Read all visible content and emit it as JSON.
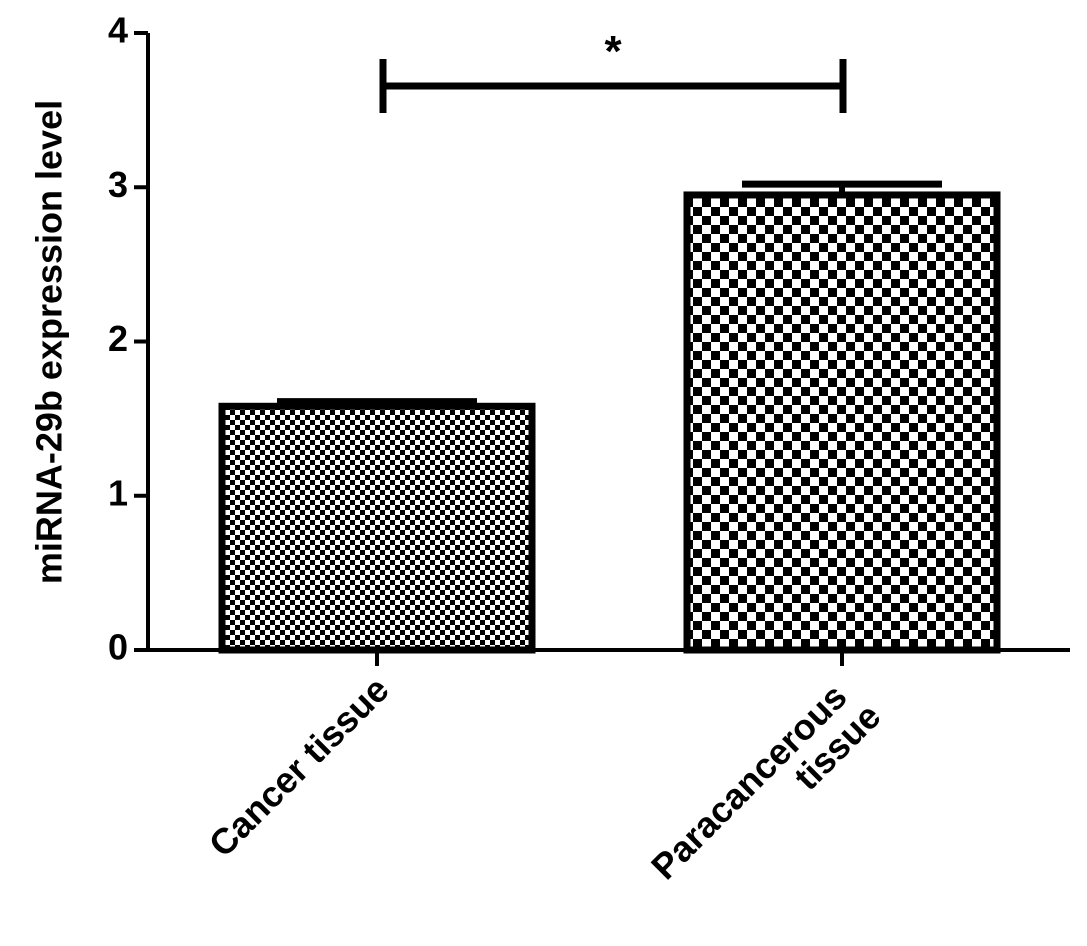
{
  "chart_data": {
    "type": "bar",
    "y_label": "miRNA-29b expression level",
    "categories": [
      "Cancer tissue",
      "Paracancerous tissue"
    ],
    "values": [
      1.58,
      2.95
    ],
    "errors": [
      0.03,
      0.07
    ],
    "color": "#000000",
    "ylim": [
      0,
      4
    ],
    "yticks": [
      0,
      1,
      2,
      3,
      4
    ],
    "annotation": "*"
  }
}
